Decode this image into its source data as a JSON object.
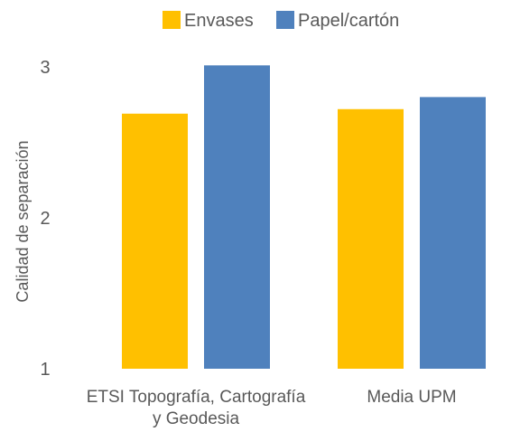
{
  "chart_data": {
    "type": "bar",
    "title": "",
    "xlabel": "",
    "ylabel": "Calidad de separación",
    "categories": [
      [
        "ETSI Topografía, Cartografía",
        "y Geodesia"
      ],
      [
        "Media UPM"
      ]
    ],
    "series": [
      {
        "name": "Envases",
        "color": "#FFC000",
        "values": [
          2.69,
          2.72
        ]
      },
      {
        "name": "Papel/cartón",
        "color": "#4F81BD",
        "values": [
          3.01,
          2.8
        ]
      }
    ],
    "ylim": [
      1,
      3
    ],
    "yticks": [
      1,
      2,
      3
    ],
    "grid": false,
    "legend_position": "top"
  }
}
